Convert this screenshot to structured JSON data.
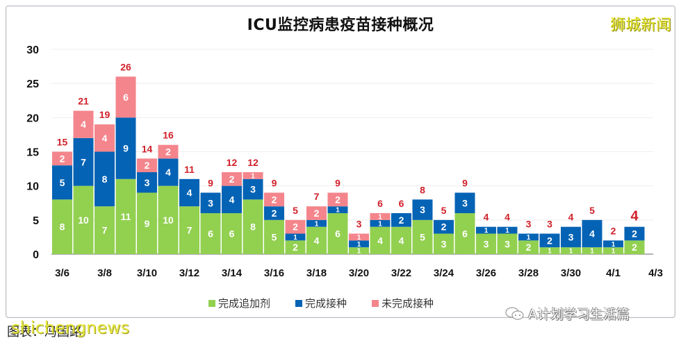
{
  "title": "ICU监控病患疫苗接种概况",
  "brand": "狮城新闻",
  "footer": {
    "source_label": "图表：冯国路",
    "watermark": "shichengnews",
    "wechat_account": "A计划学习生活篇"
  },
  "chart_data": {
    "type": "bar",
    "stacked": true,
    "title": "ICU监控病患疫苗接种概况",
    "xlabel": "",
    "ylabel": "",
    "ylim": [
      0,
      30
    ],
    "yticks": [
      0,
      5,
      10,
      15,
      20,
      25,
      30
    ],
    "grid": true,
    "legend_position": "bottom",
    "x_tick_labels": [
      "3/6",
      "3/8",
      "3/10",
      "3/12",
      "3/14",
      "3/16",
      "3/18",
      "3/20",
      "3/22",
      "3/24",
      "3/26",
      "3/28",
      "3/30",
      "4/1",
      "4/3"
    ],
    "categories": [
      "3/6",
      "3/7",
      "3/8",
      "3/9",
      "3/10",
      "3/11",
      "3/12",
      "3/13",
      "3/14",
      "3/15",
      "3/16",
      "3/17",
      "3/18",
      "3/19",
      "3/20",
      "3/21",
      "3/22",
      "3/23",
      "3/24",
      "3/25",
      "3/26",
      "3/27",
      "3/28",
      "3/29",
      "3/30",
      "3/31",
      "4/1",
      "4/2"
    ],
    "series": [
      {
        "name": "完成追加剂",
        "color": "#92d050",
        "values": [
          8,
          10,
          7,
          11,
          9,
          10,
          7,
          6,
          6,
          8,
          5,
          2,
          4,
          6,
          1,
          4,
          4,
          5,
          3,
          6,
          3,
          3,
          2,
          1,
          1,
          1,
          1,
          2
        ]
      },
      {
        "name": "完成接种",
        "color": "#0563b5",
        "values": [
          5,
          7,
          8,
          9,
          3,
          4,
          4,
          3,
          4,
          3,
          2,
          1,
          1,
          1,
          1,
          1,
          2,
          3,
          2,
          3,
          1,
          1,
          1,
          2,
          3,
          4,
          1,
          2
        ]
      },
      {
        "name": "未完成接种",
        "color": "#f4858c",
        "values": [
          2,
          4,
          4,
          6,
          2,
          2,
          0,
          0,
          2,
          1,
          2,
          2,
          2,
          2,
          1,
          1,
          0,
          0,
          0,
          0,
          0,
          0,
          0,
          0,
          0,
          0,
          0,
          0
        ]
      }
    ],
    "totals": [
      15,
      21,
      19,
      26,
      14,
      16,
      11,
      9,
      12,
      12,
      9,
      5,
      7,
      9,
      3,
      6,
      6,
      8,
      5,
      9,
      4,
      4,
      3,
      3,
      4,
      5,
      2,
      4
    ],
    "total_label_color": "#d0202a"
  }
}
